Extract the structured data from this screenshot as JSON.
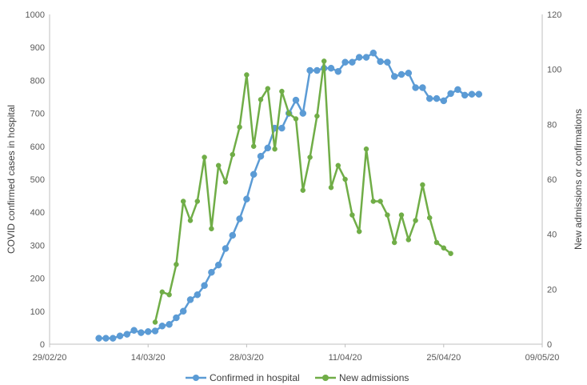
{
  "chart_data": {
    "type": "line",
    "x_axis": {
      "ticks": [
        "29/02/20",
        "14/03/20",
        "28/03/20",
        "11/04/20",
        "25/04/20",
        "09/05/20"
      ],
      "range": [
        "2020-02-29",
        "2020-05-09"
      ]
    },
    "y_left": {
      "label": "COVID confirmed cases in hospital",
      "range": [
        0,
        1000
      ],
      "ticks": [
        0,
        100,
        200,
        300,
        400,
        500,
        600,
        700,
        800,
        900,
        1000
      ]
    },
    "y_right": {
      "label": "New admissions or confirmations",
      "range": [
        0,
        120
      ],
      "ticks": [
        0,
        20,
        40,
        60,
        80,
        100,
        120
      ]
    },
    "grid": false,
    "legend_position": "bottom",
    "series": [
      {
        "name": "Confirmed in hospital",
        "axis": "left",
        "color": "#5B9BD5",
        "marker": "circle",
        "x": [
          "2020-03-07",
          "2020-03-08",
          "2020-03-09",
          "2020-03-10",
          "2020-03-11",
          "2020-03-12",
          "2020-03-13",
          "2020-03-14",
          "2020-03-15",
          "2020-03-16",
          "2020-03-17",
          "2020-03-18",
          "2020-03-19",
          "2020-03-20",
          "2020-03-21",
          "2020-03-22",
          "2020-03-23",
          "2020-03-24",
          "2020-03-25",
          "2020-03-26",
          "2020-03-27",
          "2020-03-28",
          "2020-03-29",
          "2020-03-30",
          "2020-03-31",
          "2020-04-01",
          "2020-04-02",
          "2020-04-03",
          "2020-04-04",
          "2020-04-05",
          "2020-04-06",
          "2020-04-07",
          "2020-04-08",
          "2020-04-09",
          "2020-04-10",
          "2020-04-11",
          "2020-04-12",
          "2020-04-13",
          "2020-04-14",
          "2020-04-15",
          "2020-04-16",
          "2020-04-17",
          "2020-04-18",
          "2020-04-19",
          "2020-04-20",
          "2020-04-21",
          "2020-04-22",
          "2020-04-23",
          "2020-04-24",
          "2020-04-25",
          "2020-04-26",
          "2020-04-27",
          "2020-04-28",
          "2020-04-29",
          "2020-04-30"
        ],
        "values": [
          18,
          18,
          18,
          25,
          30,
          42,
          35,
          38,
          40,
          55,
          60,
          80,
          100,
          135,
          150,
          178,
          218,
          240,
          290,
          330,
          380,
          440,
          515,
          570,
          595,
          655,
          655,
          700,
          740,
          700,
          830,
          830,
          837,
          837,
          827,
          855,
          855,
          870,
          870,
          883,
          857,
          855,
          812,
          818,
          822,
          778,
          778,
          745,
          745,
          738,
          760,
          772,
          755,
          758,
          758
        ]
      },
      {
        "name": "New admissions",
        "axis": "right",
        "color": "#70AD47",
        "marker": "circle",
        "x": [
          "2020-03-15",
          "2020-03-16",
          "2020-03-17",
          "2020-03-18",
          "2020-03-19",
          "2020-03-20",
          "2020-03-21",
          "2020-03-22",
          "2020-03-23",
          "2020-03-24",
          "2020-03-25",
          "2020-03-26",
          "2020-03-27",
          "2020-03-28",
          "2020-03-29",
          "2020-03-30",
          "2020-03-31",
          "2020-04-01",
          "2020-04-02",
          "2020-04-03",
          "2020-04-04",
          "2020-04-05",
          "2020-04-06",
          "2020-04-07",
          "2020-04-08",
          "2020-04-09",
          "2020-04-10",
          "2020-04-11",
          "2020-04-12",
          "2020-04-13",
          "2020-04-14",
          "2020-04-15",
          "2020-04-16",
          "2020-04-17",
          "2020-04-18",
          "2020-04-19",
          "2020-04-20",
          "2020-04-21",
          "2020-04-22",
          "2020-04-23",
          "2020-04-24",
          "2020-04-25",
          "2020-04-26",
          "2020-04-27"
        ],
        "values": [
          8,
          19,
          18,
          29,
          52,
          45,
          52,
          68,
          42,
          65,
          59,
          69,
          79,
          98,
          72,
          89,
          93,
          71,
          92,
          84,
          82,
          56,
          68,
          83,
          103,
          57,
          65,
          60,
          47,
          41,
          71,
          52,
          52,
          47,
          37,
          47,
          38,
          45,
          58,
          46,
          37,
          35,
          33,
          null
        ]
      }
    ]
  }
}
